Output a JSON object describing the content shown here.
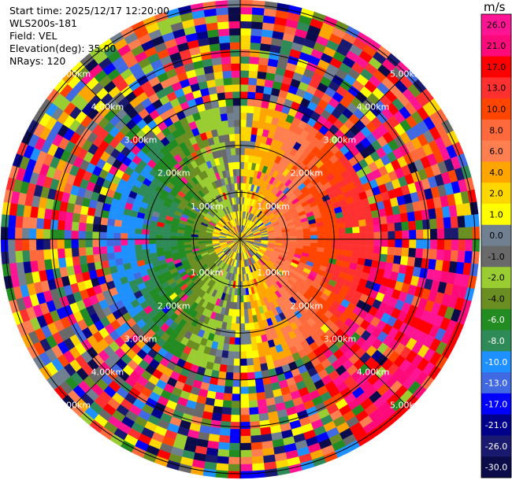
{
  "info": {
    "start_time": "Start time: 2025/12/17 12:20:00",
    "station": "WLS200s-181",
    "field": "Field: VEL",
    "elevation": "Elevation(deg): 35.00",
    "nrays": "NRays: 120"
  },
  "chart_data": {
    "type": "heatmap",
    "projection": "polar-ppi",
    "field": "VEL",
    "elevation_deg": 35.0,
    "nrays": 120,
    "range_rings": [
      "1.00km",
      "2.00km",
      "3.00km",
      "4.00km",
      "5.00km"
    ],
    "max_range_km": 5.1,
    "colorbar": {
      "unit": "m/s",
      "ticks": [
        "26.0",
        "21.0",
        "17.0",
        "13.0",
        "10.0",
        "8.0",
        "6.0",
        "4.0",
        "2.0",
        "1.0",
        "0.0",
        "-1.0",
        "-2.0",
        "-4.0",
        "-6.0",
        "-8.0",
        "-10.0",
        "-13.0",
        "-17.0",
        "-21.0",
        "-26.0",
        "-30.0"
      ],
      "colors": [
        "#ff1493",
        "#ff0a7a",
        "#ff0000",
        "#ff3030",
        "#ff4500",
        "#ff6a3c",
        "#ff7f50",
        "#ffa500",
        "#ffd700",
        "#ffff00",
        "#708090",
        "#696969",
        "#9acd32",
        "#6b8e23",
        "#228b22",
        "#2e8b57",
        "#1e90ff",
        "#4169e1",
        "#0000ff",
        "#00008b",
        "#191970",
        "#0b0b4a"
      ]
    },
    "pattern": {
      "near_field_km": 2.7,
      "description_values": "Receding (positive, yellow to red) velocities on the east half, approaching (negative, green to blue) on the west half; noisy multi-colour clutter beyond about 2.7 km."
    }
  }
}
